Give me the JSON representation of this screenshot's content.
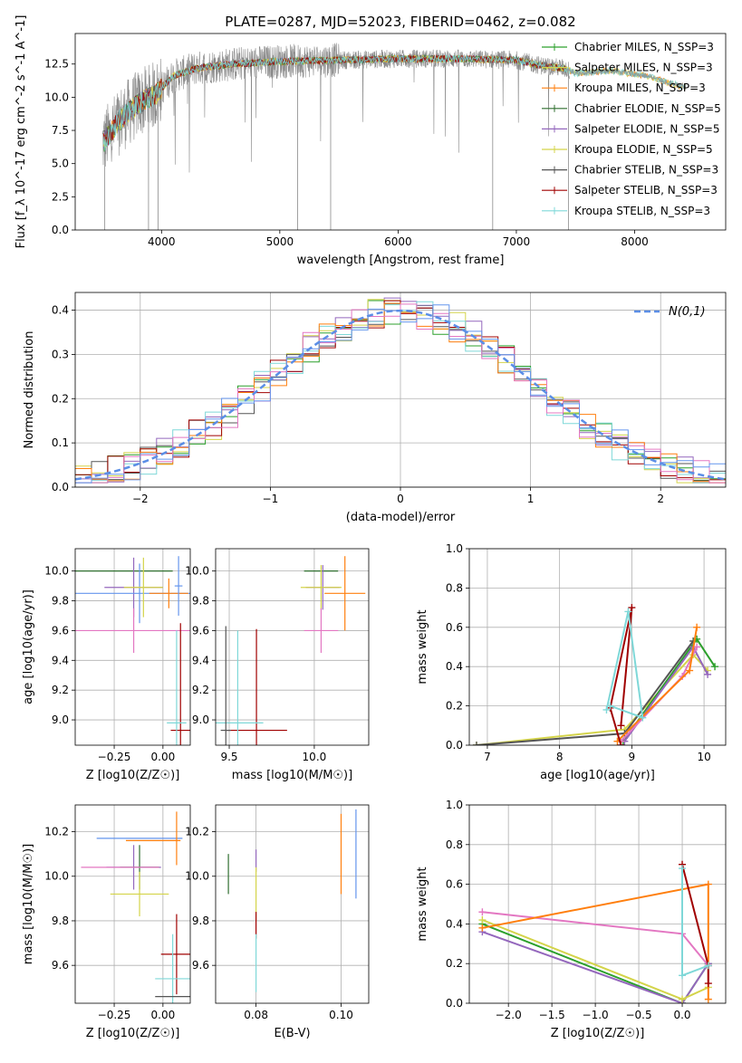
{
  "figure_title": "PLATE=0287, MJD=52023, FIBERID=0462, z=0.082",
  "model_colors": [
    "#2ca02c",
    "#9467bd",
    "#d4d44a",
    "#555555",
    "#a00000",
    "#7fd8d8",
    "#ff7f0e",
    "#e377c2",
    "#6495ed"
  ],
  "chart_data": [
    {
      "id": "spectrum",
      "type": "line",
      "title": "PLATE=0287, MJD=52023, FIBERID=0462, z=0.082",
      "xlabel": "wavelength [Angstrom, rest frame]",
      "ylabel": "Flux [f_λ 10^-17 erg cm^-2 s^-1 A^-1]",
      "xlim": [
        3270,
        8770
      ],
      "ylim": [
        0,
        14.8
      ],
      "xticks": [
        4000,
        5000,
        6000,
        7000,
        8000
      ],
      "yticks": [
        0.0,
        2.5,
        5.0,
        7.5,
        10.0,
        12.5
      ],
      "legend_placement": "upper right",
      "legend": [
        {
          "label": "Chabrier MILES, N_SSP=3",
          "color": "#2ca02c"
        },
        {
          "label": "Salpeter MILES, N_SSP=3",
          "color": "#d4d44a"
        },
        {
          "label": "Kroupa MILES, N_SSP=3",
          "color": "#ff7f0e"
        },
        {
          "label": "Chabrier ELODIE, N_SSP=5",
          "color": "#2f6f2f"
        },
        {
          "label": "Salpeter ELODIE, N_SSP=5",
          "color": "#9467bd"
        },
        {
          "label": "Kroupa ELODIE, N_SSP=5",
          "color": "#d4d44a"
        },
        {
          "label": "Chabrier STELIB, N_SSP=3",
          "color": "#555555"
        },
        {
          "label": "Salpeter STELIB, N_SSP=3",
          "color": "#a00000"
        },
        {
          "label": "Kroupa STELIB, N_SSP=3",
          "color": "#7fd8d8"
        }
      ],
      "continuum": {
        "x": [
          3500,
          3650,
          3800,
          3950,
          4100,
          4300,
          4600,
          5000,
          5500,
          6000,
          6500,
          7000,
          7200,
          7400,
          7500,
          7800,
          8100,
          8400
        ],
        "y": [
          6.5,
          8.3,
          9.5,
          10.2,
          11.6,
          12.2,
          12.5,
          12.7,
          12.8,
          12.9,
          12.9,
          12.8,
          12.4,
          12.2,
          11.8,
          12.0,
          11.6,
          10.8
        ]
      }
    },
    {
      "id": "residuals",
      "type": "line",
      "xlabel": "(data-model)/error",
      "ylabel": "Normed distribution",
      "xlim": [
        -2.5,
        2.5
      ],
      "ylim": [
        0,
        0.44
      ],
      "xticks": [
        -2,
        -1,
        0,
        1,
        2
      ],
      "yticks": [
        0.0,
        0.1,
        0.2,
        0.3,
        0.4
      ],
      "grid": true,
      "legend": [
        {
          "label": "N(0,1)",
          "style": "dashed",
          "color": "#5b8ee6"
        }
      ],
      "bins": 40
    },
    {
      "id": "age-vs-Z",
      "type": "scatter",
      "xlabel": "Z [log10(Z/Z☉)]",
      "ylabel": "age  [log10(age/yr)]",
      "xlim": [
        -0.45,
        0.14
      ],
      "ylim": [
        8.83,
        10.15
      ],
      "xticks": [
        -0.25,
        0.0
      ],
      "yticks": [
        9.0,
        9.2,
        9.4,
        9.6,
        9.8,
        10.0
      ],
      "grid": true,
      "points": [
        {
          "x": -0.2,
          "y": 10.0,
          "xerr": 0.25,
          "yerr": 0.0,
          "color": "#2f6f2f"
        },
        {
          "x": -0.15,
          "y": 9.89,
          "xerr": 0.15,
          "yerr": 0.2,
          "color": "#9467bd"
        },
        {
          "x": -0.12,
          "y": 9.85,
          "xerr": 0.35,
          "yerr": 0.2,
          "color": "#6495ed"
        },
        {
          "x": 0.03,
          "y": 9.85,
          "xerr": 0.1,
          "yerr": 0.1,
          "color": "#ff7f0e"
        },
        {
          "x": -0.15,
          "y": 9.6,
          "xerr": 0.35,
          "yerr": 0.15,
          "color": "#e377c2"
        },
        {
          "x": -0.1,
          "y": 9.89,
          "xerr": 0.1,
          "yerr": 0.2,
          "color": "#d4d44a"
        },
        {
          "x": 0.09,
          "y": 8.93,
          "xerr": 0.05,
          "yerr": 0.72,
          "color": "#a00000"
        },
        {
          "x": 0.07,
          "y": 8.98,
          "xerr": 0.05,
          "yerr": 0.62,
          "color": "#7fd8d8"
        },
        {
          "x": 0.08,
          "y": 9.9,
          "xerr": 0.02,
          "yerr": 0.2,
          "color": "#6495ed"
        }
      ]
    },
    {
      "id": "age-vs-mass",
      "type": "scatter",
      "xlabel": "mass [log10(M/M☉)]",
      "ylabel": "",
      "xlim": [
        9.42,
        10.32
      ],
      "ylim": [
        8.83,
        10.15
      ],
      "xticks": [
        9.5,
        10.0
      ],
      "yticks": [
        9.0,
        9.2,
        9.4,
        9.6,
        9.8,
        10.0
      ],
      "grid": true,
      "points": [
        {
          "x": 10.04,
          "y": 10.0,
          "xerr": 0.1,
          "yerr": 0.0,
          "color": "#2f6f2f"
        },
        {
          "x": 10.05,
          "y": 9.89,
          "xerr": 0.1,
          "yerr": 0.15,
          "color": "#9467bd"
        },
        {
          "x": 10.18,
          "y": 9.85,
          "xerr": 0.12,
          "yerr": 0.25,
          "color": "#ff7f0e"
        },
        {
          "x": 10.04,
          "y": 9.89,
          "xerr": 0.12,
          "yerr": 0.15,
          "color": "#d4d44a"
        },
        {
          "x": 10.04,
          "y": 9.6,
          "xerr": 0.1,
          "yerr": 0.15,
          "color": "#e377c2"
        },
        {
          "x": 9.66,
          "y": 8.93,
          "xerr": 0.18,
          "yerr": 0.68,
          "color": "#a00000"
        },
        {
          "x": 9.55,
          "y": 8.98,
          "xerr": 0.15,
          "yerr": 0.62,
          "color": "#7fd8d8"
        },
        {
          "x": 9.48,
          "y": 8.93,
          "xerr": 0.03,
          "yerr": 0.7,
          "color": "#555555"
        }
      ]
    },
    {
      "id": "massweight-vs-age",
      "type": "line",
      "xlabel": "age  [log10(age/yr)]",
      "ylabel": "mass weight",
      "xlim": [
        6.75,
        10.3
      ],
      "ylim": [
        0,
        1.0
      ],
      "xticks": [
        7,
        8,
        9,
        10
      ],
      "yticks": [
        0.0,
        0.2,
        0.4,
        0.6,
        0.8,
        1.0
      ],
      "grid": true,
      "series": [
        {
          "color": "#d4d44a",
          "x": [
            6.85,
            8.9,
            9.85,
            10.05
          ],
          "y": [
            0.0,
            0.08,
            0.46,
            0.38
          ]
        },
        {
          "color": "#555555",
          "x": [
            6.85,
            8.9,
            9.85
          ],
          "y": [
            0.0,
            0.06,
            0.53
          ]
        },
        {
          "color": "#2ca02c",
          "x": [
            8.88,
            9.9,
            10.15
          ],
          "y": [
            0.02,
            0.54,
            0.4
          ]
        },
        {
          "color": "#9467bd",
          "x": [
            8.9,
            9.85,
            10.05
          ],
          "y": [
            0.02,
            0.5,
            0.36
          ]
        },
        {
          "color": "#e377c2",
          "x": [
            8.85,
            9.7,
            9.9
          ],
          "y": [
            0.02,
            0.35,
            0.5
          ]
        },
        {
          "color": "#ff7f0e",
          "x": [
            8.8,
            9.8,
            9.9
          ],
          "y": [
            0.02,
            0.38,
            0.6
          ]
        },
        {
          "color": "#a00000",
          "x": [
            8.85,
            8.7,
            9.0,
            8.85
          ],
          "y": [
            0.0,
            0.19,
            0.7,
            0.1
          ]
        },
        {
          "color": "#7fd8d8",
          "x": [
            8.65,
            8.95,
            9.15,
            8.7
          ],
          "y": [
            0.18,
            0.68,
            0.14,
            0.2
          ]
        }
      ]
    },
    {
      "id": "mass-vs-Z",
      "type": "scatter",
      "xlabel": "Z [log10(Z/Z☉)]",
      "ylabel": "mass [log10(M/M☉)]",
      "xlim": [
        -0.45,
        0.14
      ],
      "ylim": [
        9.43,
        10.32
      ],
      "xticks": [
        -0.25,
        0.0
      ],
      "yticks": [
        9.6,
        9.8,
        10.0,
        10.2
      ],
      "grid": true,
      "points": [
        {
          "x": -0.12,
          "y": 10.17,
          "xerr": 0.22,
          "yerr": 0.0,
          "color": "#6495ed"
        },
        {
          "x": -0.05,
          "y": 10.16,
          "xerr": 0.14,
          "yerr": 0.0,
          "color": "#ff7f0e"
        },
        {
          "x": -0.15,
          "y": 10.04,
          "xerr": 0.14,
          "yerr": 0.1,
          "color": "#9467bd"
        },
        {
          "x": -0.12,
          "y": 10.04,
          "xerr": 0.1,
          "yerr": 0.1,
          "color": "#2f6f2f"
        },
        {
          "x": -0.22,
          "y": 10.04,
          "xerr": 0.2,
          "yerr": 0.0,
          "color": "#e377c2"
        },
        {
          "x": -0.12,
          "y": 9.92,
          "xerr": 0.15,
          "yerr": 0.1,
          "color": "#d4d44a"
        },
        {
          "x": 0.07,
          "y": 10.17,
          "xerr": 0.0,
          "yerr": 0.12,
          "color": "#ff7f0e"
        },
        {
          "x": 0.07,
          "y": 9.65,
          "xerr": 0.08,
          "yerr": 0.18,
          "color": "#a00000"
        },
        {
          "x": 0.05,
          "y": 9.54,
          "xerr": 0.09,
          "yerr": 0.2,
          "color": "#7fd8d8"
        },
        {
          "x": 0.05,
          "y": 9.46,
          "xerr": 0.09,
          "yerr": 0.0,
          "color": "#555555"
        }
      ]
    },
    {
      "id": "mass-vs-ebv",
      "type": "scatter",
      "xlabel": "E(B-V)",
      "ylabel": "",
      "xlim": [
        0.0705,
        0.1065
      ],
      "ylim": [
        9.43,
        10.32
      ],
      "xticks": [
        0.08,
        0.1
      ],
      "yticks": [
        9.6,
        9.8,
        10.0,
        10.2
      ],
      "grid": true,
      "points": [
        {
          "x": 0.0735,
          "y": 10.01,
          "yerr": 0.09,
          "color": "#2f6f2f"
        },
        {
          "x": 0.08,
          "y": 10.07,
          "yerr": 0.05,
          "color": "#9467bd"
        },
        {
          "x": 0.08,
          "y": 9.92,
          "yerr": 0.12,
          "color": "#d4d44a"
        },
        {
          "x": 0.08,
          "y": 9.78,
          "yerr": 0.06,
          "color": "#a00000"
        },
        {
          "x": 0.08,
          "y": 9.61,
          "yerr": 0.13,
          "color": "#7fd8d8"
        },
        {
          "x": 0.1,
          "y": 10.1,
          "yerr": 0.18,
          "color": "#ff7f0e"
        },
        {
          "x": 0.1035,
          "y": 10.1,
          "yerr": 0.2,
          "color": "#6495ed"
        }
      ]
    },
    {
      "id": "massweight-vs-Z",
      "type": "line",
      "xlabel": "Z [log10(Z/Z☉)]",
      "ylabel": "mass weight",
      "xlim": [
        -2.45,
        0.5
      ],
      "ylim": [
        0,
        1.0
      ],
      "xticks": [
        -2.0,
        -1.5,
        -1.0,
        -0.5,
        0.0
      ],
      "yticks": [
        0.0,
        0.2,
        0.4,
        0.6,
        0.8,
        1.0
      ],
      "grid": true,
      "series": [
        {
          "color": "#2ca02c",
          "x": [
            -2.3,
            0.0,
            0.3
          ],
          "y": [
            0.4,
            0.0,
            0.2
          ]
        },
        {
          "color": "#9467bd",
          "x": [
            -2.3,
            0.0,
            0.3
          ],
          "y": [
            0.36,
            0.0,
            0.2
          ]
        },
        {
          "color": "#d4d44a",
          "x": [
            -2.3,
            0.0,
            0.3
          ],
          "y": [
            0.42,
            0.02,
            0.08
          ]
        },
        {
          "color": "#e377c2",
          "x": [
            -2.3,
            0.0,
            0.3
          ],
          "y": [
            0.46,
            0.35,
            0.19
          ]
        },
        {
          "color": "#ff7f0e",
          "x": [
            -2.3,
            0.3,
            0.3
          ],
          "y": [
            0.38,
            0.6,
            0.02
          ]
        },
        {
          "color": "#a00000",
          "x": [
            0.0,
            0.3,
            0.3
          ],
          "y": [
            0.7,
            0.19,
            0.1
          ]
        },
        {
          "color": "#7fd8d8",
          "x": [
            0.0,
            0.0,
            0.3
          ],
          "y": [
            0.68,
            0.14,
            0.19
          ]
        }
      ]
    }
  ]
}
